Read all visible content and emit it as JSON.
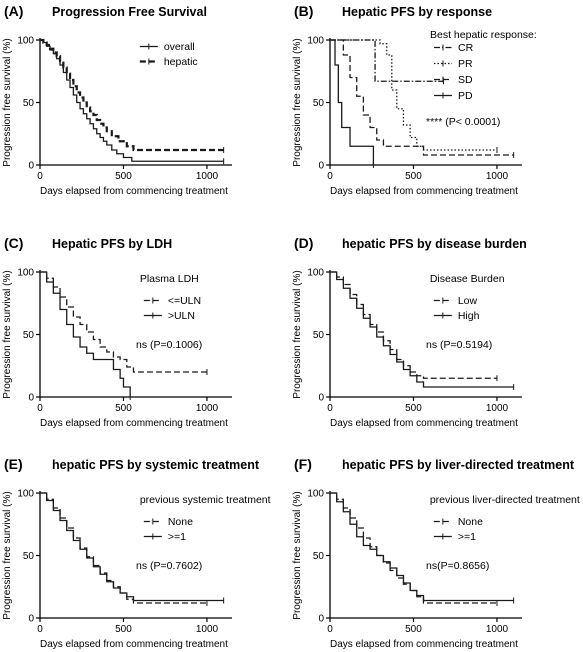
{
  "figure": {
    "axis_color": "#000000",
    "line_color": "#1a1a1a"
  },
  "chart_data": [
    {
      "panel": "(A)",
      "title": "Progression Free Survival",
      "type": "line",
      "xlabel": "Days elapsed from commencing treatment",
      "ylabel": "Progression free survival (%)",
      "xlim": [
        0,
        1150
      ],
      "ylim": [
        0,
        100
      ],
      "xticks": [
        0,
        500,
        1000
      ],
      "yticks": [
        0,
        50,
        100
      ],
      "legend_title": "",
      "legend_position": "top-right",
      "annotation": "",
      "series": [
        {
          "name": "overall",
          "style": "solid",
          "x": [
            0,
            20,
            40,
            60,
            80,
            100,
            120,
            140,
            160,
            180,
            200,
            220,
            240,
            260,
            280,
            300,
            320,
            340,
            360,
            380,
            400,
            430,
            460,
            500,
            550,
            1100
          ],
          "y": [
            100,
            98,
            95,
            92,
            89,
            85,
            80,
            74,
            68,
            62,
            56,
            50,
            45,
            41,
            37,
            33,
            29,
            25,
            22,
            19,
            16,
            12,
            9,
            6,
            3,
            3
          ]
        },
        {
          "name": "hepatic",
          "style": "dashed",
          "x": [
            0,
            20,
            40,
            60,
            80,
            100,
            120,
            140,
            160,
            180,
            200,
            220,
            240,
            260,
            280,
            300,
            320,
            340,
            360,
            380,
            400,
            430,
            470,
            520,
            560,
            1100
          ],
          "y": [
            100,
            98,
            96,
            93,
            90,
            87,
            83,
            78,
            73,
            68,
            63,
            58,
            54,
            50,
            46,
            43,
            40,
            36,
            33,
            30,
            27,
            23,
            19,
            15,
            12,
            12
          ]
        }
      ]
    },
    {
      "panel": "(B)",
      "title": "Hepatic PFS by response",
      "type": "line",
      "xlabel": "Days elapsed from commencing treatment",
      "ylabel": "Progression free survival (%)",
      "xlim": [
        0,
        1150
      ],
      "ylim": [
        0,
        100
      ],
      "xticks": [
        0,
        500,
        1000
      ],
      "yticks": [
        0,
        50,
        100
      ],
      "legend_title": "Best hepatic response:",
      "legend_position": "top-right",
      "annotation": "**** (P< 0.0001)",
      "series": [
        {
          "name": "CR",
          "style": "dashdot",
          "x": [
            0,
            270,
            270,
            300,
            300,
            680
          ],
          "y": [
            100,
            100,
            67,
            67,
            67,
            67
          ]
        },
        {
          "name": "PR",
          "style": "dotted",
          "x": [
            0,
            300,
            340,
            370,
            400,
            440,
            480,
            520,
            560,
            1000
          ],
          "y": [
            100,
            97,
            88,
            60,
            45,
            32,
            22,
            15,
            12,
            12
          ]
        },
        {
          "name": "SD",
          "style": "dashed",
          "x": [
            0,
            80,
            120,
            160,
            200,
            240,
            280,
            320,
            360,
            560,
            1100
          ],
          "y": [
            100,
            88,
            70,
            55,
            40,
            30,
            20,
            15,
            15,
            8,
            8
          ]
        },
        {
          "name": "PD",
          "style": "solid",
          "x": [
            0,
            30,
            50,
            70,
            100,
            120,
            260,
            260
          ],
          "y": [
            100,
            80,
            50,
            30,
            30,
            15,
            15,
            0
          ]
        }
      ]
    },
    {
      "panel": "(C)",
      "title": "Hepatic PFS by LDH",
      "type": "line",
      "xlabel": "Days elapsed from commencing treatment",
      "ylabel": "Progression free survival (%)",
      "xlim": [
        0,
        1150
      ],
      "ylim": [
        0,
        100
      ],
      "xticks": [
        0,
        500,
        1000
      ],
      "yticks": [
        0,
        50,
        100
      ],
      "legend_title": "Plasma LDH",
      "legend_position": "top-right",
      "annotation": "ns (P=0.1006)",
      "series": [
        {
          "name": "<=ULN",
          "style": "dashed",
          "x": [
            0,
            40,
            80,
            120,
            160,
            200,
            240,
            280,
            320,
            360,
            400,
            440,
            480,
            520,
            560,
            1000
          ],
          "y": [
            100,
            95,
            88,
            80,
            72,
            64,
            58,
            52,
            46,
            40,
            36,
            32,
            30,
            24,
            20,
            20
          ]
        },
        {
          "name": ">ULN",
          "style": "solid",
          "x": [
            0,
            40,
            80,
            120,
            160,
            200,
            240,
            280,
            320,
            380,
            440,
            480,
            500,
            540
          ],
          "y": [
            100,
            92,
            83,
            70,
            58,
            48,
            40,
            35,
            30,
            30,
            22,
            15,
            8,
            0
          ]
        }
      ]
    },
    {
      "panel": "(D)",
      "title": "hepatic PFS by disease burden",
      "type": "line",
      "xlabel": "Days elapsed from commencing treatment",
      "ylabel": "Progression free survival (%)",
      "xlim": [
        0,
        1150
      ],
      "ylim": [
        0,
        100
      ],
      "xticks": [
        0,
        500,
        1000
      ],
      "yticks": [
        0,
        50,
        100
      ],
      "legend_title": "Disease Burden",
      "legend_position": "top-right",
      "annotation": "ns (P=0.5194)",
      "series": [
        {
          "name": "Low",
          "style": "dashed",
          "x": [
            0,
            40,
            80,
            120,
            160,
            200,
            240,
            280,
            320,
            360,
            400,
            440,
            480,
            520,
            560,
            1000
          ],
          "y": [
            100,
            96,
            90,
            82,
            74,
            66,
            58,
            52,
            45,
            38,
            30,
            25,
            20,
            17,
            15,
            15
          ]
        },
        {
          "name": "High",
          "style": "solid",
          "x": [
            0,
            40,
            80,
            120,
            160,
            200,
            240,
            280,
            320,
            360,
            400,
            440,
            480,
            520,
            560,
            1100
          ],
          "y": [
            100,
            94,
            87,
            79,
            71,
            63,
            56,
            48,
            41,
            34,
            28,
            22,
            17,
            12,
            8,
            8
          ]
        }
      ]
    },
    {
      "panel": "(E)",
      "title": "hepatic PFS by systemic treatment",
      "type": "line",
      "xlabel": "Days elapsed from commencing treatment",
      "ylabel": "Progression free survival (%)",
      "xlim": [
        0,
        1150
      ],
      "ylim": [
        0,
        100
      ],
      "xticks": [
        0,
        500,
        1000
      ],
      "yticks": [
        0,
        50,
        100
      ],
      "legend_title": "previous systemic treatment",
      "legend_position": "top-right",
      "annotation": "ns (P=0.7602)",
      "series": [
        {
          "name": "None",
          "style": "dashed",
          "x": [
            0,
            40,
            80,
            120,
            160,
            200,
            240,
            280,
            320,
            360,
            400,
            440,
            480,
            520,
            560,
            1000
          ],
          "y": [
            100,
            95,
            88,
            80,
            72,
            64,
            56,
            49,
            42,
            36,
            30,
            25,
            20,
            15,
            12,
            12
          ]
        },
        {
          "name": ">=1",
          "style": "solid",
          "x": [
            0,
            40,
            80,
            120,
            160,
            200,
            240,
            280,
            320,
            360,
            400,
            440,
            480,
            520,
            560,
            1100
          ],
          "y": [
            100,
            94,
            86,
            78,
            70,
            62,
            55,
            48,
            41,
            35,
            29,
            24,
            20,
            17,
            14,
            14
          ]
        }
      ]
    },
    {
      "panel": "(F)",
      "title": "hepatic PFS by liver-directed treatment",
      "type": "line",
      "xlabel": "Days elapsed from commencing treatment",
      "ylabel": "Progression free survival (%)",
      "xlim": [
        0,
        1150
      ],
      "ylim": [
        0,
        100
      ],
      "xticks": [
        0,
        500,
        1000
      ],
      "yticks": [
        0,
        50,
        100
      ],
      "legend_title": "previous liver-directed treatment",
      "legend_position": "top-right",
      "annotation": "ns(P=0.8656)",
      "series": [
        {
          "name": "None",
          "style": "dashed",
          "x": [
            0,
            40,
            80,
            120,
            160,
            200,
            240,
            280,
            320,
            360,
            400,
            440,
            480,
            520,
            560,
            1000
          ],
          "y": [
            100,
            95,
            88,
            80,
            72,
            64,
            57,
            50,
            44,
            38,
            32,
            27,
            22,
            17,
            12,
            12
          ]
        },
        {
          "name": ">=1",
          "style": "solid",
          "x": [
            0,
            40,
            80,
            120,
            160,
            200,
            240,
            280,
            320,
            360,
            400,
            440,
            480,
            520,
            560,
            1100
          ],
          "y": [
            100,
            93,
            85,
            75,
            65,
            58,
            55,
            50,
            45,
            40,
            34,
            28,
            22,
            18,
            14,
            14
          ]
        }
      ]
    }
  ]
}
